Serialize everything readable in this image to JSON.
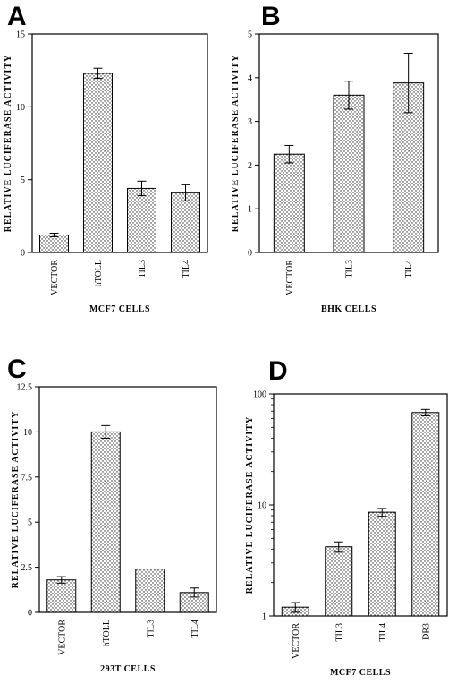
{
  "chart_data": [
    {
      "type": "bar",
      "panel": "A",
      "ylabel": "RELATIVE LUCIFERASE ACTIVITY",
      "xlabel": "MCF7 CELLS",
      "categories": [
        "VECTOR",
        "hTOLL",
        "TIL3",
        "TIL4"
      ],
      "values": [
        1.2,
        12.3,
        4.4,
        4.1
      ],
      "errors": [
        0.12,
        0.35,
        0.5,
        0.55
      ],
      "ylim": [
        0,
        15
      ],
      "yticks": [
        0,
        5,
        10,
        15
      ],
      "ytick_labels": [
        "0",
        "5",
        "10",
        "15"
      ],
      "yscale": "linear",
      "bar_fill": "dotted"
    },
    {
      "type": "bar",
      "panel": "B",
      "ylabel": "RELATIVE LUCIFERASE ACTIVITY",
      "xlabel": "BHK CELLS",
      "categories": [
        "VECTOR",
        "TIL3",
        "TIL4"
      ],
      "values": [
        2.25,
        3.6,
        3.88
      ],
      "errors": [
        0.2,
        0.32,
        0.68
      ],
      "ylim": [
        0,
        5
      ],
      "yticks": [
        0,
        1,
        2,
        3,
        4,
        5
      ],
      "ytick_labels": [
        "0",
        "1",
        "2",
        "3",
        "4",
        "5"
      ],
      "yscale": "linear",
      "bar_fill": "dotted"
    },
    {
      "type": "bar",
      "panel": "C",
      "ylabel": "RELATIVE LUCIFERASE ACTIVITY",
      "xlabel": "293T CELLS",
      "categories": [
        "VECTOR",
        "hTOLL",
        "TIL3",
        "TIL4"
      ],
      "values": [
        1.8,
        10.0,
        2.4,
        1.1
      ],
      "errors": [
        0.18,
        0.35,
        0.0,
        0.25
      ],
      "ylim": [
        0,
        12.5
      ],
      "yticks": [
        0,
        2.5,
        5,
        7.5,
        10,
        12.5
      ],
      "ytick_labels": [
        "0",
        "2.5",
        "5",
        "7.5",
        "10",
        "12.5"
      ],
      "yscale": "linear",
      "bar_fill": "dotted"
    },
    {
      "type": "bar",
      "panel": "D",
      "ylabel": "RELATIVE LUCIFERASE ACTIVITY",
      "xlabel": "MCF7 CELLS",
      "categories": [
        "VECTOR",
        "TIL3",
        "TIL4",
        "DR3"
      ],
      "values": [
        1.2,
        4.2,
        8.6,
        68
      ],
      "errors": [
        0.12,
        0.45,
        0.7,
        4.5
      ],
      "ylim": [
        1,
        100
      ],
      "yticks": [
        1,
        10,
        100
      ],
      "ytick_labels": [
        "1",
        "10",
        "100"
      ],
      "yscale": "log",
      "bar_fill": "dotted"
    }
  ]
}
